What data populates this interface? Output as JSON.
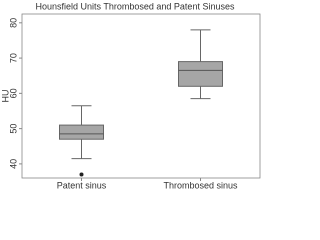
{
  "chart_data": {
    "type": "box",
    "title": "Hounsfield Units Thrombosed and Patent Sinuses",
    "y_label": "HU",
    "categories": [
      "Patent sinus",
      "Thrombosed sinus"
    ],
    "boxes": [
      {
        "min": 41.5,
        "q1": 47,
        "median": 48.5,
        "q3": 51,
        "max": 56.5,
        "outliers": [
          37
        ]
      },
      {
        "min": 58.5,
        "q1": 62,
        "median": 66.5,
        "q3": 69,
        "max": 78,
        "outliers": []
      }
    ],
    "color": "#a6a6a6",
    "ylim": [
      36,
      82.5
    ],
    "yticks": [
      40,
      50,
      60,
      70,
      80
    ]
  }
}
